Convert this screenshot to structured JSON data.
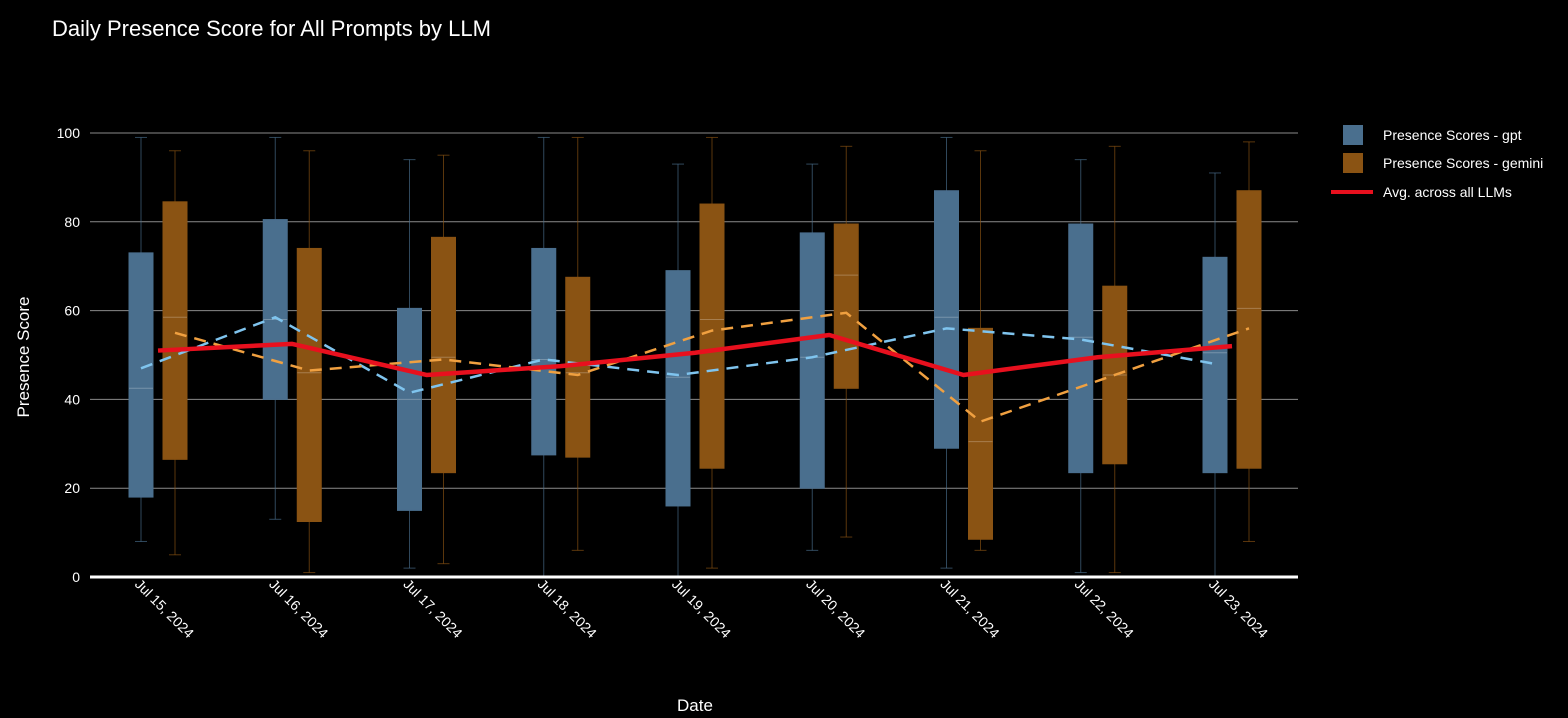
{
  "chart_data": {
    "type": "box",
    "title": "Daily Presence Score for All Prompts by LLM",
    "xlabel": "Date",
    "ylabel": "Presence Score",
    "ylim": [
      0,
      100
    ],
    "yticks": [
      0,
      20,
      40,
      60,
      80,
      100
    ],
    "grid": true,
    "legend_position": "top-right",
    "categories": [
      "Jul 15, 2024",
      "Jul 16, 2024",
      "Jul 17, 2024",
      "Jul 18, 2024",
      "Jul 19, 2024",
      "Jul 20, 2024",
      "Jul 21, 2024",
      "Jul 22, 2024",
      "Jul 23, 2024"
    ],
    "box_series": [
      {
        "name": "Presence Scores - gpt",
        "color": "#4a6f8e",
        "mean_line_color": "#7fc4ee",
        "boxes": [
          {
            "min": 8,
            "q1": 18,
            "median": 42.5,
            "q3": 73,
            "max": 99,
            "mean": 47
          },
          {
            "min": 13,
            "q1": 40,
            "median": 58,
            "q3": 80.5,
            "max": 99,
            "mean": 58.5
          },
          {
            "min": 2,
            "q1": 15,
            "median": 40,
            "q3": 60.5,
            "max": 94,
            "mean": 41.5
          },
          {
            "min": 0,
            "q1": 27.5,
            "median": 49,
            "q3": 74,
            "max": 99,
            "mean": 49
          },
          {
            "min": 0,
            "q1": 16,
            "median": 45,
            "q3": 69,
            "max": 93,
            "mean": 45.5
          },
          {
            "min": 6,
            "q1": 20,
            "median": 49.5,
            "q3": 77.5,
            "max": 93,
            "mean": 49.5
          },
          {
            "min": 2,
            "q1": 29,
            "median": 58.5,
            "q3": 87,
            "max": 99,
            "mean": 56
          },
          {
            "min": 1,
            "q1": 23.5,
            "median": 54,
            "q3": 79.5,
            "max": 94,
            "mean": 53.5
          },
          {
            "min": 0,
            "q1": 23.5,
            "median": 50.5,
            "q3": 72,
            "max": 91,
            "mean": 48
          }
        ]
      },
      {
        "name": "Presence Scores - gemini",
        "color": "#8a5313",
        "mean_line_color": "#f0a040",
        "boxes": [
          {
            "min": 5,
            "q1": 26.5,
            "median": 58.5,
            "q3": 84.5,
            "max": 96,
            "mean": 55
          },
          {
            "min": 1,
            "q1": 12.5,
            "median": 46,
            "q3": 74,
            "max": 96,
            "mean": 46.5
          },
          {
            "min": 3,
            "q1": 23.5,
            "median": 49.5,
            "q3": 76.5,
            "max": 95,
            "mean": 49
          },
          {
            "min": 6,
            "q1": 27,
            "median": 46,
            "q3": 67.5,
            "max": 99,
            "mean": 45.5
          },
          {
            "min": 2,
            "q1": 24.5,
            "median": 58,
            "q3": 84,
            "max": 99,
            "mean": 55.5
          },
          {
            "min": 9,
            "q1": 42.5,
            "median": 68,
            "q3": 79.5,
            "max": 97,
            "mean": 59.5
          },
          {
            "min": 6,
            "q1": 8.5,
            "median": 30.5,
            "q3": 56,
            "max": 96,
            "mean": 35
          },
          {
            "min": 1,
            "q1": 25.5,
            "median": 45.5,
            "q3": 65.5,
            "max": 97,
            "mean": 45.5
          },
          {
            "min": 8,
            "q1": 24.5,
            "median": 60.5,
            "q3": 87,
            "max": 98,
            "mean": 56
          }
        ]
      }
    ],
    "line_series": [
      {
        "name": "Avg. across all LLMs",
        "color": "#e8101e",
        "values": [
          51,
          52.5,
          45.5,
          47.5,
          50.5,
          54.5,
          45.5,
          49.5,
          52
        ]
      }
    ]
  }
}
